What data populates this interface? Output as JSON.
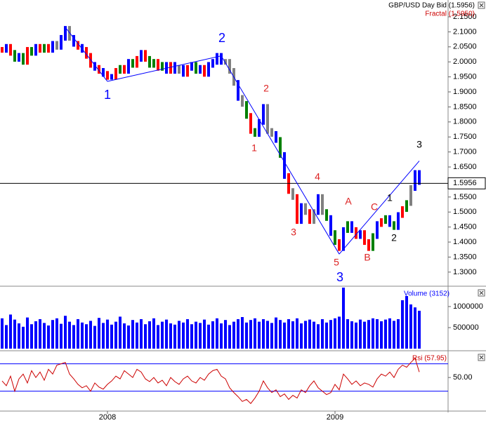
{
  "chart_data": {
    "type": "financial",
    "categories": [
      null,
      null,
      null,
      null,
      null,
      null,
      null,
      null,
      null,
      null,
      null,
      null,
      null,
      null,
      null,
      null,
      null,
      null,
      null,
      null,
      null,
      null,
      null,
      null,
      null,
      "2008",
      null,
      null,
      null,
      null,
      null,
      null,
      null,
      null,
      null,
      null,
      null,
      null,
      null,
      null,
      null,
      null,
      null,
      null,
      null,
      null,
      null,
      null,
      null,
      null,
      null,
      null,
      null,
      null,
      null,
      null,
      null,
      null,
      null,
      null,
      null,
      null,
      null,
      null,
      null,
      null,
      null,
      null,
      null,
      null,
      null,
      null,
      null,
      null,
      null,
      null,
      null,
      null,
      null,
      "2009",
      null,
      null,
      null,
      null,
      null,
      null,
      null,
      null,
      null,
      null,
      null,
      null,
      null,
      null,
      null,
      null,
      null,
      null,
      null,
      null
    ],
    "price": {
      "legend": "GBP/USD Day Bid (1.5956)",
      "values": [
        2.04,
        2.05,
        2.03,
        2.01,
        2.02,
        2.0,
        2.04,
        2.03,
        2.05,
        2.04,
        2.05,
        2.04,
        2.06,
        2.05,
        2.08,
        2.11,
        2.08,
        2.06,
        2.05,
        2.04,
        2.02,
        1.99,
        1.98,
        1.97,
        1.96,
        1.95,
        1.95,
        1.97,
        1.98,
        1.97,
        2.0,
        1.99,
        2.01,
        2.03,
        2.01,
        1.99,
        2.0,
        1.98,
        1.99,
        1.97,
        1.99,
        1.97,
        1.98,
        1.96,
        1.98,
        1.99,
        1.97,
        1.98,
        1.96,
        1.99,
        2.0,
        2.02,
        2.0,
        2.0,
        1.97,
        1.93,
        1.88,
        1.86,
        1.82,
        1.77,
        1.76,
        1.8,
        1.85,
        1.77,
        1.76,
        1.74,
        1.69,
        1.62,
        1.57,
        1.55,
        1.47,
        1.52,
        1.5,
        1.47,
        1.5,
        1.55,
        1.5,
        1.48,
        1.43,
        1.4,
        1.38,
        1.44,
        1.46,
        1.44,
        1.42,
        1.43,
        1.4,
        1.38,
        1.42,
        1.46,
        1.47,
        1.48,
        1.46,
        1.45,
        1.49,
        1.51,
        1.53,
        1.58,
        1.63,
        1.6
      ],
      "colors": [
        "red",
        "blue",
        "red",
        "green",
        "blue",
        "green",
        "red",
        "green",
        "blue",
        "red",
        "green",
        "red",
        "blue",
        "gray",
        "blue",
        "blue",
        "gray",
        "blue",
        "red",
        "blue",
        "red",
        "red",
        "blue",
        "red",
        "blue",
        "red",
        "blue",
        "red",
        "green",
        "red",
        "blue",
        "green",
        "red",
        "blue",
        "red",
        "green",
        "green",
        "red",
        "green",
        "blue",
        "red",
        "blue",
        "gray",
        "blue",
        "red",
        "blue",
        "green",
        "blue",
        "red",
        "blue",
        "blue",
        "blue",
        "blue",
        "gray",
        "gray",
        "gray",
        "blue",
        "gray",
        "green",
        "red",
        "green",
        "blue",
        "blue",
        "gray",
        "gray",
        "blue",
        "green",
        "blue",
        "red",
        "gray",
        "red",
        "blue",
        "gray",
        "red",
        "gray",
        "blue",
        "gray",
        "green",
        "blue",
        "green",
        "red",
        "blue",
        "green",
        "blue",
        "red",
        "blue",
        "red",
        "red",
        "green",
        "blue",
        "red",
        "green",
        "blue",
        "green",
        "blue",
        "red",
        "green",
        "gray",
        "blue",
        "blue"
      ],
      "ylim": [
        1.253,
        2.206
      ],
      "yticks": [
        {
          "value": 1.3,
          "label": "1.3000"
        },
        {
          "value": 1.35,
          "label": "1.3500"
        },
        {
          "value": 1.4,
          "label": "1.4000"
        },
        {
          "value": 1.45,
          "label": "1.4500"
        },
        {
          "value": 1.5,
          "label": "1.5000"
        },
        {
          "value": 1.55,
          "label": "1.5500"
        },
        {
          "value": 1.6,
          "label": "1.6000"
        },
        {
          "value": 1.65,
          "label": "1.6500"
        },
        {
          "value": 1.7,
          "label": "1.7000"
        },
        {
          "value": 1.75,
          "label": "1.7500"
        },
        {
          "value": 1.8,
          "label": "1.8000"
        },
        {
          "value": 1.85,
          "label": "1.8500"
        },
        {
          "value": 1.9,
          "label": "1.9000"
        },
        {
          "value": 1.95,
          "label": "1.9500"
        },
        {
          "value": 2.0,
          "label": "2.0000"
        },
        {
          "value": 2.05,
          "label": "2.0500"
        },
        {
          "value": 2.1,
          "label": "2.1000"
        },
        {
          "value": 2.15,
          "label": "2.1500"
        }
      ],
      "last": 1.5956
    },
    "fractal": {
      "legend": "Fractal (1.5950)",
      "legend_color": "#cc0000",
      "color": "#0000ff",
      "values": [
        null,
        null,
        null,
        null,
        null,
        null,
        null,
        null,
        null,
        null,
        null,
        null,
        null,
        null,
        null,
        2.115,
        null,
        null,
        null,
        null,
        null,
        null,
        null,
        null,
        null,
        1.935,
        null,
        null,
        null,
        null,
        null,
        null,
        null,
        null,
        null,
        null,
        null,
        null,
        null,
        null,
        null,
        null,
        null,
        null,
        null,
        null,
        null,
        null,
        null,
        null,
        null,
        null,
        2.02,
        null,
        null,
        null,
        null,
        null,
        null,
        null,
        null,
        null,
        null,
        null,
        null,
        null,
        null,
        null,
        null,
        null,
        null,
        null,
        null,
        null,
        null,
        null,
        null,
        null,
        null,
        null,
        1.36,
        null,
        null,
        null,
        null,
        null,
        null,
        null,
        null,
        null,
        null,
        null,
        null,
        null,
        null,
        null,
        null,
        null,
        null,
        1.67
      ]
    },
    "annotations": [
      {
        "text": "1",
        "color": "#0000ff"
      },
      {
        "text": "2",
        "color": "#0000ff"
      },
      {
        "text": "3",
        "color": "#0000ff"
      },
      {
        "text": "1",
        "color": "#dd2222"
      },
      {
        "text": "2",
        "color": "#dd2222"
      },
      {
        "text": "3",
        "color": "#dd2222"
      },
      {
        "text": "4",
        "color": "#dd2222"
      },
      {
        "text": "5",
        "color": "#dd2222"
      },
      {
        "text": "A",
        "color": "#dd2222"
      },
      {
        "text": "B",
        "color": "#dd2222"
      },
      {
        "text": "C",
        "color": "#dd2222"
      },
      {
        "text": "1",
        "color": "#000000"
      },
      {
        "text": "2",
        "color": "#000000"
      },
      {
        "text": "3",
        "color": "#000000"
      }
    ],
    "volume": {
      "legend": "Volume (3152)",
      "color": "#0000ff",
      "values": [
        720000,
        560000,
        810000,
        690000,
        600000,
        520000,
        740000,
        580000,
        650000,
        700000,
        610000,
        550000,
        680000,
        720000,
        590000,
        780000,
        640000,
        560000,
        700000,
        620000,
        580000,
        660000,
        540000,
        730000,
        610000,
        690000,
        570000,
        640000,
        760000,
        600000,
        550000,
        680000,
        620000,
        700000,
        580000,
        650000,
        720000,
        560000,
        640000,
        690000,
        600000,
        570000,
        660000,
        620000,
        700000,
        580000,
        640000,
        610000,
        690000,
        570000,
        650000,
        720000,
        600000,
        680000,
        560000,
        640000,
        700000,
        750000,
        620000,
        680000,
        720000,
        640000,
        700000,
        660000,
        610000,
        740000,
        680000,
        620000,
        700000,
        650000,
        720000,
        600000,
        660000,
        690000,
        640000,
        580000,
        700000,
        620000,
        680000,
        720000,
        760000,
        1450000,
        700000,
        650000,
        620000,
        690000,
        640000,
        680000,
        720000,
        700000,
        650000,
        690000,
        720000,
        660000,
        700000,
        1150000,
        1250000,
        1050000,
        980000,
        900000
      ],
      "ylim": [
        0,
        1500000
      ],
      "yticks": [
        500000,
        1000000
      ]
    },
    "rsi": {
      "legend": "Rsi (57.95)",
      "color": "#cc0000",
      "values": [
        45,
        38,
        52,
        30,
        48,
        55,
        42,
        60,
        50,
        58,
        46,
        62,
        55,
        68,
        70,
        72,
        55,
        48,
        40,
        35,
        38,
        30,
        42,
        36,
        33,
        40,
        45,
        52,
        48,
        60,
        55,
        50,
        62,
        58,
        48,
        44,
        50,
        42,
        46,
        38,
        50,
        44,
        40,
        48,
        52,
        45,
        42,
        50,
        46,
        55,
        60,
        62,
        52,
        48,
        35,
        28,
        22,
        15,
        18,
        12,
        20,
        30,
        45,
        35,
        28,
        32,
        22,
        26,
        18,
        24,
        20,
        32,
        28,
        38,
        45,
        35,
        30,
        25,
        28,
        40,
        32,
        55,
        48,
        40,
        45,
        38,
        42,
        40,
        36,
        48,
        55,
        52,
        58,
        50,
        62,
        68,
        65,
        72,
        78,
        58
      ],
      "ylim": [
        2,
        86
      ],
      "yticks": [
        {
          "value": 50,
          "label": "50.00"
        }
      ],
      "levels": [
        30,
        70
      ],
      "level_color": "#0000ff"
    }
  }
}
